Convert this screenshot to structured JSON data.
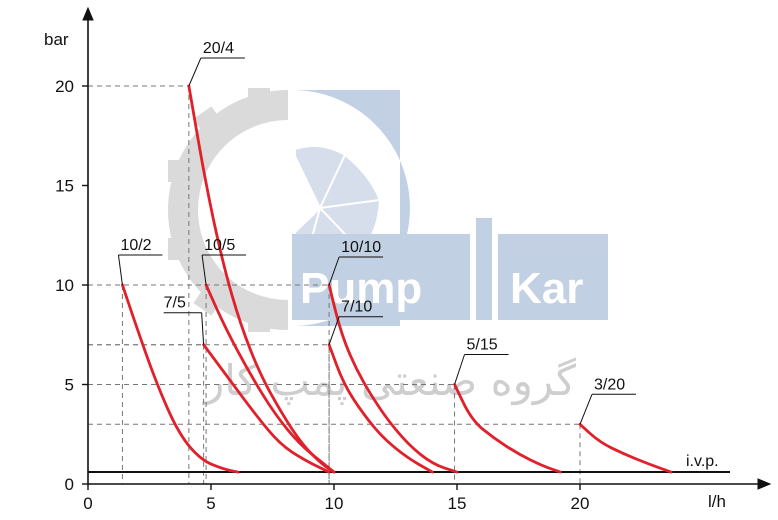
{
  "chart_data": {
    "type": "line",
    "title": "",
    "xlabel": "l/h",
    "ylabel": "bar",
    "xlim": [
      0,
      25
    ],
    "ylim": [
      0,
      22
    ],
    "x_ticks": [
      "0",
      "5",
      "10",
      "15",
      "20"
    ],
    "y_ticks": [
      "0",
      "5",
      "10",
      "15",
      "20"
    ],
    "reference_line": {
      "label": "i.v.p.",
      "y": 0.6
    },
    "series": [
      {
        "name": "10/2",
        "color": "#e0202a",
        "points": [
          [
            1.4,
            10
          ],
          [
            2.0,
            7.8
          ],
          [
            2.8,
            5
          ],
          [
            3.7,
            2.5
          ],
          [
            4.6,
            1.2
          ],
          [
            5.5,
            0.75
          ],
          [
            6.1,
            0.6
          ]
        ]
      },
      {
        "name": "7/5",
        "color": "#e0202a",
        "points": [
          [
            4.7,
            7
          ],
          [
            5.6,
            5.5
          ],
          [
            6.8,
            3.5
          ],
          [
            7.8,
            2.0
          ],
          [
            8.8,
            1.2
          ],
          [
            9.8,
            0.6
          ]
        ]
      },
      {
        "name": "10/5",
        "color": "#e0202a",
        "points": [
          [
            4.8,
            10
          ],
          [
            5.6,
            7.8
          ],
          [
            6.6,
            5.5
          ],
          [
            7.6,
            3.5
          ],
          [
            8.6,
            2
          ],
          [
            9.5,
            1.1
          ],
          [
            10.0,
            0.6
          ]
        ]
      },
      {
        "name": "20/4",
        "color": "#e0202a",
        "points": [
          [
            4.1,
            20
          ],
          [
            4.8,
            15
          ],
          [
            5.5,
            11
          ],
          [
            6.2,
            8
          ],
          [
            7.0,
            5.5
          ],
          [
            7.9,
            3.5
          ],
          [
            8.7,
            2
          ],
          [
            9.5,
            1
          ],
          [
            10.0,
            0.6
          ]
        ]
      },
      {
        "name": "7/10",
        "color": "#e0202a",
        "points": [
          [
            9.8,
            7
          ],
          [
            10.4,
            5
          ],
          [
            11.2,
            3.5
          ],
          [
            12.0,
            2.3
          ],
          [
            13.0,
            1.3
          ],
          [
            14.0,
            0.6
          ]
        ]
      },
      {
        "name": "10/10",
        "color": "#e0202a",
        "points": [
          [
            9.8,
            10
          ],
          [
            10.3,
            7.5
          ],
          [
            11.0,
            5.5
          ],
          [
            12.0,
            3.5
          ],
          [
            13.0,
            2.0
          ],
          [
            14.0,
            1.0
          ],
          [
            15.0,
            0.6
          ]
        ]
      },
      {
        "name": "5/15",
        "color": "#e0202a",
        "points": [
          [
            14.9,
            5
          ],
          [
            15.6,
            3.2
          ],
          [
            16.5,
            2.3
          ],
          [
            17.5,
            1.5
          ],
          [
            18.5,
            0.9
          ],
          [
            19.2,
            0.6
          ]
        ]
      },
      {
        "name": "3/20",
        "color": "#e0202a",
        "points": [
          [
            20.0,
            3
          ],
          [
            20.8,
            2.1
          ],
          [
            21.8,
            1.5
          ],
          [
            22.8,
            1.0
          ],
          [
            23.7,
            0.6
          ]
        ]
      }
    ]
  },
  "watermark": {
    "brand_left": "Pump",
    "brand_right": "Kar",
    "persian_text": "گروه صنعتی پمپ کار"
  }
}
